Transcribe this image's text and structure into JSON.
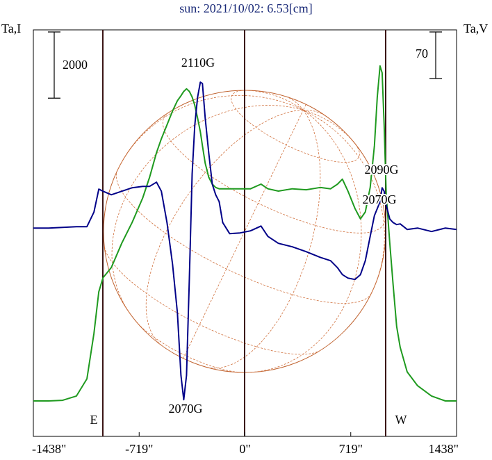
{
  "chart_data": {
    "type": "line",
    "title": "sun: 2021/10/02: 6.53[cm]",
    "y_label": "Ta,I",
    "y2_label": "Ta,V",
    "xlim": [
      -1438,
      1438
    ],
    "xticks": [
      {
        "value": -1438,
        "label": "-1438\""
      },
      {
        "value": -719,
        "label": "-719\""
      },
      {
        "value": 0,
        "label": "0\""
      },
      {
        "value": 719,
        "label": "719\""
      },
      {
        "value": 1438,
        "label": "1438\""
      }
    ],
    "ylim": [
      -1070,
      11210
    ],
    "y2lim": [
      -311,
      300
    ],
    "scale_bars": [
      {
        "value": 2000,
        "axis": "y"
      },
      {
        "value": 70,
        "axis": "y2"
      }
    ],
    "annotations": [
      "2110G",
      "2070G",
      "2090G",
      "2070G",
      "E",
      "W"
    ],
    "x": [
      -1438,
      -1334,
      -1239,
      -1145,
      -1074,
      -1026,
      -993,
      -965,
      -908,
      -837,
      -766,
      -695,
      -648,
      -601,
      -568,
      -530,
      -492,
      -459,
      -435,
      -416,
      -397,
      -378,
      -359,
      -341,
      -322,
      -303,
      -289,
      -270,
      -246,
      -222,
      -199,
      -175,
      -151,
      -104,
      -33,
      38,
      109,
      156,
      227,
      322,
      416,
      511,
      582,
      629,
      662,
      700,
      747,
      785,
      818,
      851,
      880,
      899,
      918,
      932,
      946,
      960,
      984,
      1007,
      1031,
      1055,
      1102,
      1173,
      1268,
      1362,
      1438
    ],
    "series": [
      {
        "color": "#1f9a1f",
        "axis": "y",
        "values": [
          0,
          0,
          20,
          150,
          670,
          2040,
          3300,
          3720,
          4030,
          4770,
          5400,
          6130,
          6760,
          7500,
          7920,
          8340,
          8760,
          9070,
          9220,
          9350,
          9430,
          9350,
          9180,
          8930,
          8550,
          8130,
          7710,
          7180,
          6760,
          6550,
          6450,
          6410,
          6410,
          6410,
          6410,
          6410,
          6550,
          6410,
          6340,
          6410,
          6380,
          6450,
          6410,
          6550,
          6700,
          6340,
          5820,
          5500,
          5710,
          6450,
          7710,
          9180,
          10120,
          9910,
          8340,
          6240,
          4770,
          3510,
          2250,
          1620,
          880,
          460,
          150,
          0,
          0
        ]
      },
      {
        "color": "#000088",
        "axis": "y2",
        "values": [
          2.1,
          2.1,
          3.1,
          4.2,
          4.2,
          26.1,
          60.6,
          57.5,
          52.2,
          57.5,
          62.7,
          64.8,
          64.8,
          71.1,
          57.5,
          10.4,
          -52.2,
          -125.4,
          -219.4,
          -256,
          -219.4,
          -73.1,
          83.6,
          156.7,
          198.5,
          221.5,
          219.4,
          167.2,
          114.9,
          67.9,
          52.2,
          41.8,
          10.4,
          -6.3,
          -5.2,
          -2.1,
          5.2,
          -10.4,
          -20.9,
          -26.1,
          -33.4,
          -41.8,
          -47,
          -57.5,
          -67.9,
          -73.1,
          -75.2,
          -67.9,
          -47,
          -10.4,
          20.9,
          31.3,
          41.8,
          62.7,
          57.5,
          36.6,
          15.7,
          10.4,
          7.3,
          8.4,
          0,
          2.1,
          -3.1,
          2.1,
          0
        ]
      }
    ]
  }
}
